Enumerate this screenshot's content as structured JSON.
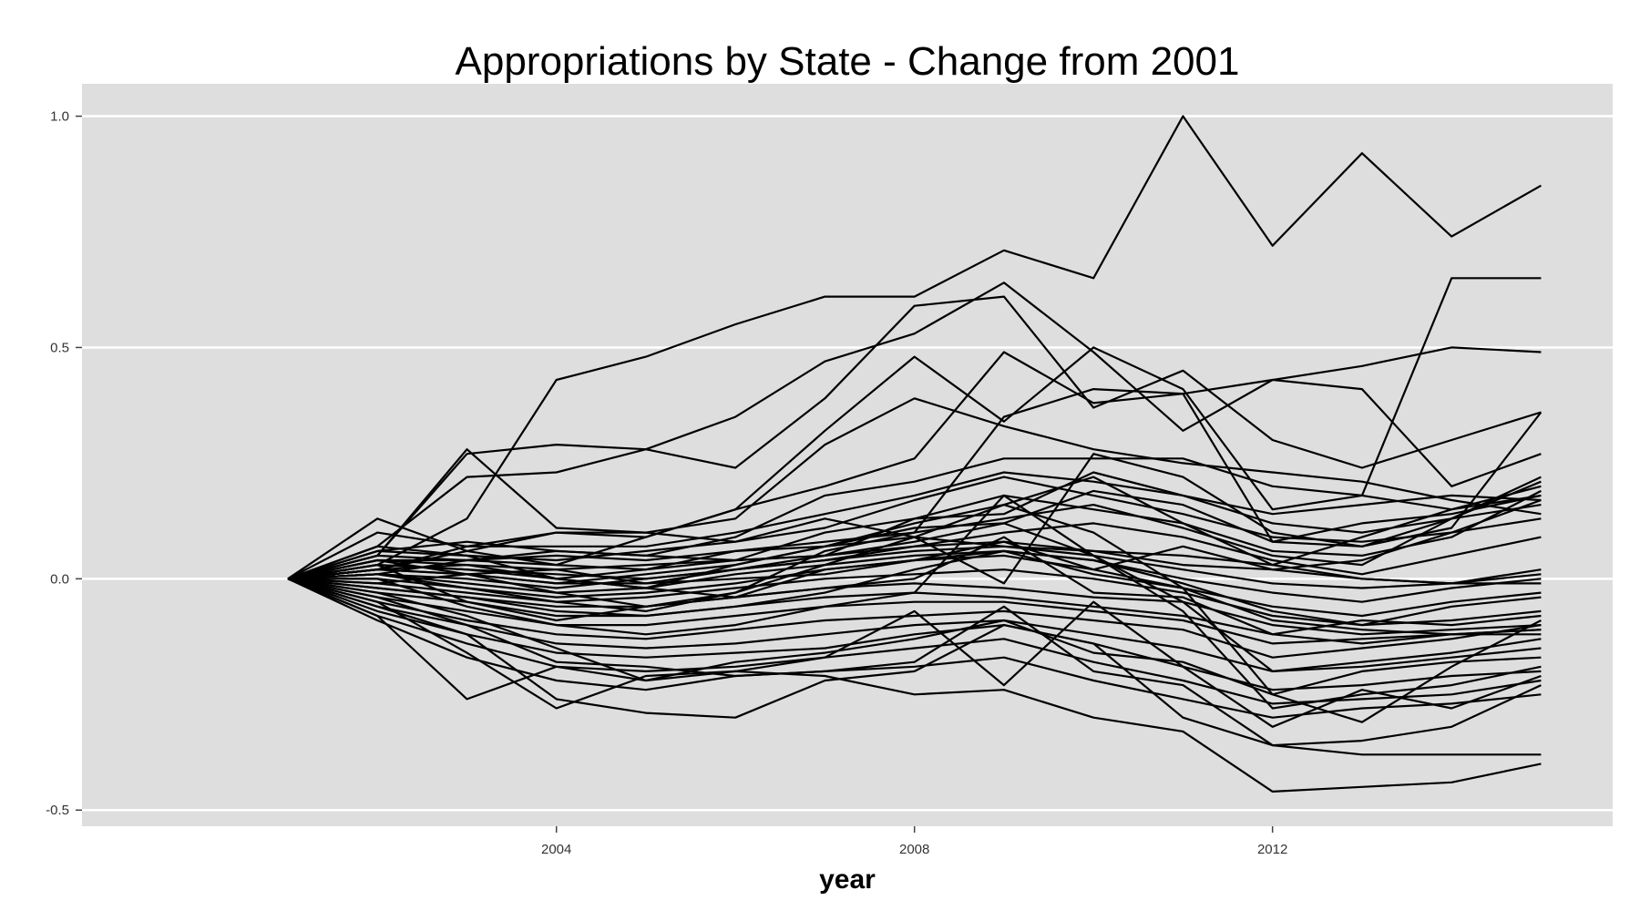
{
  "chart_data": {
    "type": "line",
    "title": "Appropriations by State - Change from 2001",
    "xlabel": "year",
    "ylabel": "",
    "x": [
      2001,
      2002,
      2003,
      2004,
      2005,
      2006,
      2007,
      2008,
      2009,
      2010,
      2011,
      2012,
      2013,
      2014,
      2015
    ],
    "xlim": [
      1998.7,
      2015.8
    ],
    "ylim": [
      -0.535,
      1.07
    ],
    "xticks": [
      2004,
      2008,
      2012
    ],
    "xtick_labels": [
      "2004",
      "2008",
      "2012"
    ],
    "yticks": [
      -0.5,
      0.0,
      0.5,
      1.0
    ],
    "ytick_labels": [
      "-0.5",
      "0.0",
      "0.5",
      "1.0"
    ],
    "grid": true,
    "panel_background": "#dedede",
    "grid_color": "#ffffff",
    "line_color": "#000000",
    "series": [
      {
        "values": [
          0,
          0.05,
          0.27,
          0.29,
          0.28,
          0.24,
          0.39,
          0.59,
          0.61,
          0.37,
          0.45,
          0.3,
          0.24,
          0.3,
          0.36
        ]
      },
      {
        "values": [
          0,
          0.03,
          0.13,
          0.43,
          0.48,
          0.55,
          0.61,
          0.61,
          0.71,
          0.65,
          1.0,
          0.72,
          0.92,
          0.74,
          0.85
        ]
      },
      {
        "values": [
          0,
          0.07,
          0.22,
          0.23,
          0.28,
          0.35,
          0.47,
          0.53,
          0.64,
          0.49,
          0.32,
          0.43,
          0.46,
          0.5,
          0.49
        ]
      },
      {
        "values": [
          0,
          0.13,
          0.06,
          0.03,
          0.09,
          0.15,
          0.32,
          0.48,
          0.34,
          0.5,
          0.41,
          0.15,
          0.18,
          0.65,
          0.65
        ]
      },
      {
        "values": [
          0,
          0.05,
          0.28,
          0.11,
          0.1,
          0.13,
          0.29,
          0.39,
          0.33,
          0.28,
          0.25,
          0.23,
          0.21,
          0.17,
          0.14
        ]
      },
      {
        "values": [
          0,
          0.02,
          0.07,
          0.1,
          0.09,
          0.15,
          0.2,
          0.26,
          0.49,
          0.38,
          0.4,
          0.43,
          0.41,
          0.2,
          0.27
        ]
      },
      {
        "values": [
          0,
          0.04,
          0.04,
          0.06,
          0.05,
          0.09,
          0.18,
          0.21,
          0.26,
          0.26,
          0.26,
          0.2,
          0.18,
          0.15,
          0.18
        ]
      },
      {
        "values": [
          0,
          0.1,
          0.07,
          0.07,
          0.07,
          0.1,
          0.14,
          0.18,
          0.23,
          0.21,
          0.18,
          0.12,
          0.1,
          0.13,
          0.16
        ]
      },
      {
        "values": [
          0,
          0.06,
          0.05,
          0.04,
          0.06,
          0.08,
          0.11,
          0.17,
          0.22,
          0.18,
          0.14,
          0.09,
          0.08,
          0.1,
          0.13
        ]
      },
      {
        "values": [
          0,
          0.04,
          0.03,
          0.02,
          0.03,
          0.04,
          0.1,
          0.13,
          0.18,
          0.15,
          0.12,
          0.06,
          0.05,
          0.09,
          0.19
        ]
      },
      {
        "values": [
          0,
          0.02,
          0.01,
          -0.01,
          0.01,
          0.03,
          0.07,
          0.12,
          0.16,
          0.22,
          0.12,
          0.03,
          0.09,
          0.15,
          0.2
        ]
      },
      {
        "values": [
          0,
          0.03,
          0.02,
          0.0,
          0.02,
          0.06,
          0.08,
          0.1,
          0.13,
          0.16,
          0.11,
          0.05,
          0.03,
          0.13,
          0.21
        ]
      },
      {
        "values": [
          0,
          0.05,
          0.04,
          0.03,
          0.02,
          0.04,
          0.05,
          0.08,
          0.12,
          0.19,
          0.16,
          0.08,
          0.12,
          0.14,
          0.18
        ]
      },
      {
        "values": [
          0,
          0.01,
          0.0,
          -0.02,
          0.0,
          0.02,
          0.05,
          0.07,
          0.1,
          0.12,
          0.09,
          0.04,
          0.01,
          0.05,
          0.09
        ]
      },
      {
        "values": [
          0,
          0.02,
          0.01,
          -0.01,
          -0.01,
          0.02,
          0.04,
          0.07,
          0.08,
          0.06,
          0.03,
          0.02,
          0.0,
          -0.01,
          0.02
        ]
      },
      {
        "values": [
          0,
          0.03,
          0.02,
          0.01,
          0.0,
          0.02,
          0.04,
          0.06,
          0.07,
          0.05,
          0.02,
          -0.01,
          -0.02,
          -0.01,
          0.01
        ]
      },
      {
        "values": [
          0,
          0.01,
          -0.01,
          -0.03,
          -0.02,
          0.01,
          0.03,
          0.05,
          0.06,
          0.04,
          0.0,
          -0.03,
          -0.05,
          -0.02,
          0.0
        ]
      },
      {
        "values": [
          0,
          0.0,
          -0.02,
          -0.04,
          -0.03,
          -0.01,
          0.02,
          0.04,
          0.05,
          0.02,
          -0.02,
          -0.06,
          -0.08,
          -0.05,
          -0.03
        ]
      },
      {
        "values": [
          0,
          -0.01,
          -0.03,
          -0.05,
          -0.04,
          -0.02,
          0.0,
          0.01,
          0.02,
          0.0,
          -0.03,
          -0.08,
          -0.1,
          -0.09,
          -0.07
        ]
      },
      {
        "values": [
          0,
          -0.02,
          -0.04,
          -0.06,
          -0.06,
          -0.04,
          -0.02,
          -0.01,
          -0.02,
          -0.04,
          -0.05,
          -0.1,
          -0.12,
          -0.11,
          -0.1
        ]
      },
      {
        "values": [
          0,
          -0.03,
          -0.05,
          -0.08,
          -0.08,
          -0.06,
          -0.04,
          -0.03,
          -0.04,
          -0.06,
          -0.08,
          -0.12,
          -0.14,
          -0.12,
          -0.11
        ]
      },
      {
        "values": [
          0,
          -0.04,
          -0.07,
          -0.1,
          -0.1,
          -0.08,
          -0.06,
          -0.05,
          -0.05,
          -0.07,
          -0.09,
          -0.14,
          -0.13,
          -0.12,
          -0.12
        ]
      },
      {
        "values": [
          0,
          -0.05,
          -0.09,
          -0.12,
          -0.13,
          -0.11,
          -0.09,
          -0.08,
          -0.07,
          -0.09,
          -0.11,
          -0.17,
          -0.15,
          -0.13,
          -0.1
        ]
      },
      {
        "values": [
          0,
          -0.06,
          -0.1,
          -0.14,
          -0.15,
          -0.14,
          -0.12,
          -0.1,
          -0.09,
          -0.12,
          -0.15,
          -0.2,
          -0.19,
          -0.17,
          -0.15
        ]
      },
      {
        "values": [
          0,
          -0.07,
          -0.12,
          -0.16,
          -0.17,
          -0.16,
          -0.15,
          -0.12,
          -0.1,
          -0.14,
          -0.19,
          -0.24,
          -0.23,
          -0.21,
          -0.2
        ]
      },
      {
        "values": [
          0,
          -0.08,
          -0.14,
          -0.19,
          -0.2,
          -0.19,
          -0.17,
          -0.15,
          -0.13,
          -0.18,
          -0.22,
          -0.27,
          -0.26,
          -0.25,
          -0.22
        ]
      },
      {
        "values": [
          0,
          -0.09,
          -0.17,
          -0.22,
          -0.24,
          -0.21,
          -0.2,
          -0.19,
          -0.17,
          -0.22,
          -0.26,
          -0.3,
          -0.28,
          -0.27,
          -0.25
        ]
      },
      {
        "values": [
          0,
          -0.08,
          -0.26,
          -0.19,
          -0.22,
          -0.2,
          -0.17,
          -0.07,
          -0.23,
          -0.05,
          -0.19,
          -0.32,
          -0.24,
          -0.28,
          -0.21
        ]
      },
      {
        "values": [
          0,
          -0.05,
          -0.16,
          -0.28,
          -0.21,
          -0.2,
          -0.21,
          -0.25,
          -0.24,
          -0.3,
          -0.33,
          -0.46,
          -0.45,
          -0.44,
          -0.4
        ]
      },
      {
        "values": [
          0,
          -0.06,
          -0.12,
          -0.26,
          -0.29,
          -0.3,
          -0.22,
          -0.2,
          -0.1,
          -0.14,
          -0.3,
          -0.36,
          -0.38,
          -0.38,
          -0.38
        ]
      },
      {
        "values": [
          0,
          -0.04,
          -0.1,
          -0.18,
          -0.19,
          -0.21,
          -0.2,
          -0.18,
          -0.06,
          -0.2,
          -0.23,
          -0.36,
          -0.35,
          -0.32,
          -0.23
        ]
      },
      {
        "values": [
          0,
          -0.03,
          -0.08,
          -0.15,
          -0.22,
          -0.18,
          -0.16,
          -0.13,
          -0.09,
          -0.16,
          -0.18,
          -0.25,
          -0.2,
          -0.18,
          -0.17
        ]
      },
      {
        "values": [
          0,
          0.02,
          0.06,
          0.1,
          0.1,
          0.08,
          0.13,
          0.09,
          -0.01,
          0.27,
          0.22,
          0.1,
          0.07,
          0.13,
          0.22
        ]
      },
      {
        "values": [
          0,
          0.06,
          0.08,
          0.06,
          0.05,
          0.04,
          0.05,
          0.13,
          0.14,
          0.23,
          0.18,
          0.14,
          0.16,
          0.18,
          0.17
        ]
      },
      {
        "values": [
          0,
          0.01,
          -0.02,
          -0.05,
          -0.07,
          -0.03,
          0.06,
          0.1,
          0.35,
          0.41,
          0.4,
          0.08,
          0.07,
          0.11,
          0.36
        ]
      },
      {
        "values": [
          0,
          0.03,
          -0.05,
          -0.09,
          -0.06,
          -0.04,
          0.02,
          0.04,
          0.08,
          0.02,
          0.07,
          0.02,
          0.04,
          0.1,
          0.17
        ]
      },
      {
        "values": [
          0,
          0.0,
          -0.06,
          -0.1,
          -0.12,
          -0.1,
          -0.06,
          -0.03,
          0.18,
          0.05,
          -0.05,
          -0.2,
          -0.18,
          -0.16,
          -0.13
        ]
      },
      {
        "values": [
          0,
          -0.01,
          0.01,
          0.02,
          -0.01,
          0.0,
          0.01,
          0.04,
          0.06,
          0.04,
          -0.01,
          -0.07,
          -0.1,
          -0.06,
          -0.04
        ]
      },
      {
        "values": [
          0,
          0.02,
          0.03,
          0.0,
          -0.02,
          -0.04,
          -0.02,
          0.0,
          0.09,
          -0.03,
          -0.04,
          -0.12,
          -0.09,
          -0.1,
          -0.08
        ]
      },
      {
        "values": [
          0,
          0.01,
          0.04,
          0.05,
          0.04,
          0.06,
          0.07,
          0.09,
          0.07,
          0.06,
          0.05,
          0.03,
          0.0,
          -0.01,
          -0.01
        ]
      },
      {
        "values": [
          0,
          -0.02,
          -0.04,
          -0.07,
          -0.08,
          -0.06,
          -0.03,
          0.02,
          0.06,
          0.01,
          -0.02,
          -0.09,
          -0.11,
          -0.12,
          -0.11
        ]
      },
      {
        "values": [
          0,
          0.04,
          0.01,
          -0.03,
          -0.06,
          -0.03,
          0.03,
          0.09,
          0.16,
          0.1,
          -0.02,
          -0.25,
          -0.31,
          -0.19,
          -0.09
        ]
      },
      {
        "values": [
          0,
          0.07,
          0.05,
          0.0,
          -0.02,
          0.03,
          0.07,
          0.11,
          0.12,
          0.05,
          -0.07,
          -0.28,
          -0.25,
          -0.23,
          -0.19
        ]
      }
    ]
  }
}
